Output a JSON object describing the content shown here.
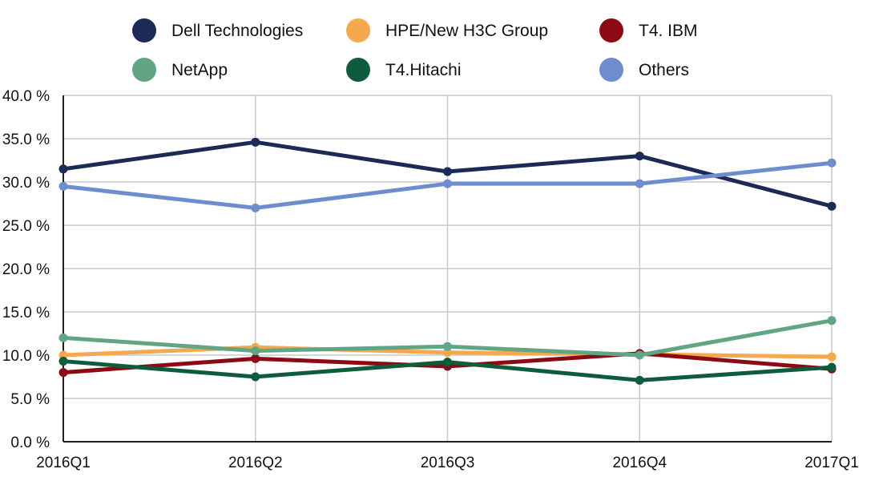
{
  "chart_data": {
    "type": "line",
    "title": "",
    "xlabel": "",
    "ylabel": "",
    "categories": [
      "2016Q1",
      "2016Q2",
      "2016Q3",
      "2016Q4",
      "2017Q1"
    ],
    "ylim": [
      0,
      40
    ],
    "y_ticks": [
      0,
      5,
      10,
      15,
      20,
      25,
      30,
      35,
      40
    ],
    "y_tick_labels": [
      "0.0 %",
      "5.0 %",
      "10.0 %",
      "15.0 %",
      "20.0 %",
      "25.0 %",
      "30.0 %",
      "35.0 %",
      "40.0 %"
    ],
    "grid": true,
    "legend_position": "top",
    "series": [
      {
        "name": "Dell Technologies",
        "color": "#1b2a57",
        "values": [
          31.5,
          34.6,
          31.2,
          33.0,
          27.2
        ]
      },
      {
        "name": "HPE/New H3C Group",
        "color": "#f5a94e",
        "values": [
          10.0,
          10.9,
          10.3,
          10.1,
          9.8
        ]
      },
      {
        "name": "T4. IBM",
        "color": "#8b0a14",
        "values": [
          8.0,
          9.6,
          8.7,
          10.2,
          8.4
        ]
      },
      {
        "name": "NetApp",
        "color": "#62a585",
        "values": [
          12.0,
          10.5,
          11.0,
          10.0,
          14.0
        ]
      },
      {
        "name": "T4.Hitachi",
        "color": "#0f5c3c",
        "values": [
          9.3,
          7.5,
          9.2,
          7.1,
          8.6
        ]
      },
      {
        "name": "Others",
        "color": "#6e8dcf",
        "values": [
          29.5,
          27.0,
          29.8,
          29.8,
          32.2
        ]
      }
    ]
  }
}
